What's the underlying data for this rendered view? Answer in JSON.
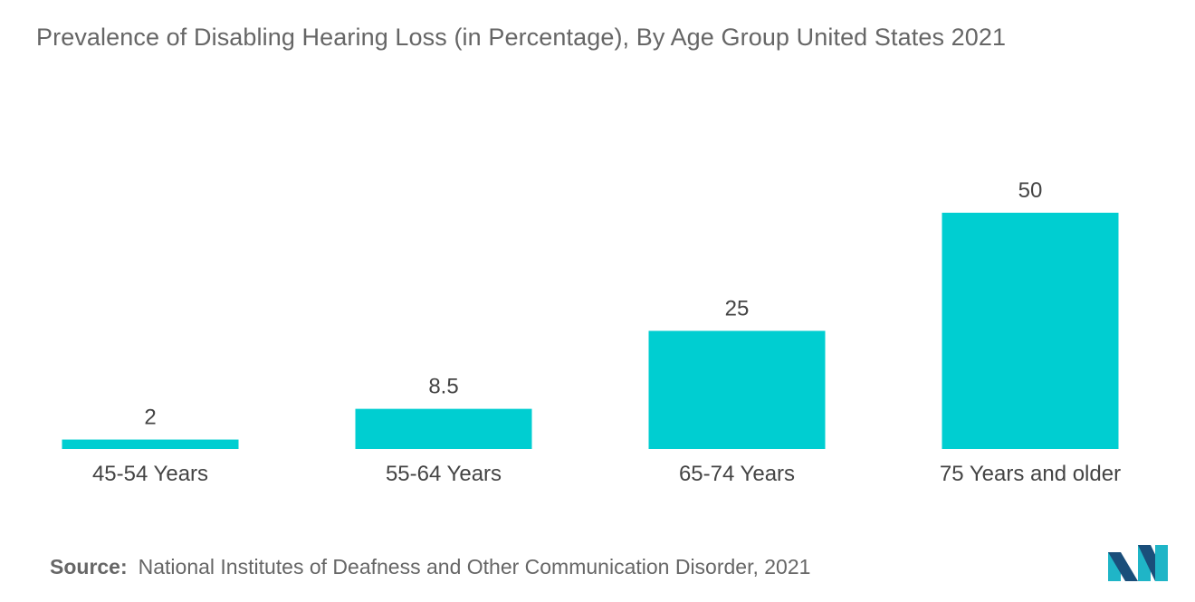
{
  "chart_data": {
    "type": "bar",
    "title": "Prevalence of Disabling Hearing Loss (in Percentage), By Age Group United States 2021",
    "categories": [
      "45-54 Years",
      "55-64 Years",
      "65-74 Years",
      "75 Years and older"
    ],
    "values": [
      2,
      8.5,
      25,
      50
    ],
    "value_labels": [
      "2",
      "8.5",
      "25",
      "50"
    ],
    "xlabel": "",
    "ylabel": "",
    "ylim": [
      0,
      50
    ],
    "grid": false,
    "legend": "none",
    "bar_color": "#00CED1"
  },
  "source": {
    "label": "Source:",
    "text": "National Institutes of Deafness and Other Communication Disorder, 2021"
  },
  "logo": {
    "icon": "mordor-intelligence-logo-icon",
    "colors": [
      "#1FB5C7",
      "#1A4E7A"
    ]
  }
}
